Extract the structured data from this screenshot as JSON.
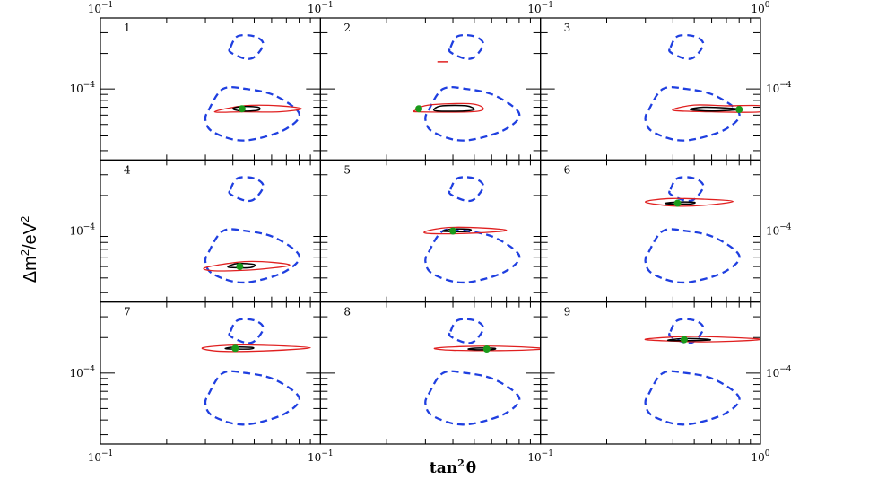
{
  "chart_data": {
    "type": "contour",
    "layout": "3x3 small multiples",
    "xlabel_base": "tan",
    "xlabel_sup": "2",
    "xlabel_end": "θ",
    "ylabel_main": "Δm",
    "ylabel_sup1": "2",
    "ylabel_mid": "/eV",
    "ylabel_sup2": "2",
    "x_scale": "log",
    "xlim": [
      0.1,
      1.0
    ],
    "y_scale": "log",
    "ylim": [
      2.5e-05,
      0.0004
    ],
    "x_tick_label_base": "10",
    "x_tick_label_left_exp": "−1",
    "x_tick_label_right_exp": "0",
    "y_tick_label_base": "10",
    "y_tick_label_exp": "−4",
    "colors": {
      "allowed_region": "#1f3fe0",
      "fit_region": "#e02020",
      "best_fit_region": "#000000",
      "best_fit_point": "#1a9a1a"
    },
    "common_contours": [
      {
        "style": "dashed",
        "color": "#1f3fe0",
        "points": [
          [
            0.31,
            6.6e-05
          ],
          [
            0.36,
            0.0001
          ],
          [
            0.46,
            0.0001
          ],
          [
            0.62,
            8.8e-05
          ],
          [
            0.8,
            6.2e-05
          ],
          [
            0.7,
            4.6e-05
          ],
          [
            0.52,
            3.8e-05
          ],
          [
            0.41,
            3.7e-05
          ],
          [
            0.32,
            4.4e-05
          ],
          [
            0.3,
            5.5e-05
          ],
          [
            0.31,
            6.6e-05
          ]
        ]
      },
      {
        "style": "dashed",
        "color": "#1f3fe0",
        "points": [
          [
            0.39,
            0.000225
          ],
          [
            0.42,
            0.00028
          ],
          [
            0.5,
            0.00028
          ],
          [
            0.55,
            0.00024
          ],
          [
            0.5,
            0.000186
          ],
          [
            0.45,
            0.000182
          ],
          [
            0.39,
            0.000205
          ],
          [
            0.39,
            0.000225
          ]
        ]
      }
    ],
    "panels": [
      {
        "label": "1",
        "best_fit": [
          0.44,
          6.8e-05
        ],
        "fit_contour": [
          [
            0.33,
            6.4e-05
          ],
          [
            0.45,
            7.2e-05
          ],
          [
            0.65,
            7.2e-05
          ],
          [
            0.82,
            6.8e-05
          ],
          [
            0.65,
            6.4e-05
          ],
          [
            0.45,
            6.4e-05
          ],
          [
            0.33,
            6.4e-05
          ]
        ],
        "best_contour": [
          [
            0.4,
            6.8e-05
          ],
          [
            0.44,
            7.1e-05
          ],
          [
            0.52,
            7e-05
          ],
          [
            0.52,
            6.6e-05
          ],
          [
            0.44,
            6.5e-05
          ],
          [
            0.4,
            6.8e-05
          ]
        ]
      },
      {
        "label": "2",
        "best_fit": [
          0.28,
          6.8e-05
        ],
        "fit_contour": [
          [
            0.27,
            6.6e-05
          ],
          [
            0.31,
            7.3e-05
          ],
          [
            0.48,
            7.5e-05
          ],
          [
            0.55,
            6.8e-05
          ],
          [
            0.48,
            6.4e-05
          ],
          [
            0.28,
            6.4e-05
          ],
          [
            0.27,
            6.6e-05
          ]
        ],
        "best_contour": [
          [
            0.33,
            6.8e-05
          ],
          [
            0.36,
            7.2e-05
          ],
          [
            0.46,
            7.2e-05
          ],
          [
            0.5,
            6.7e-05
          ],
          [
            0.45,
            6.5e-05
          ],
          [
            0.34,
            6.5e-05
          ],
          [
            0.33,
            6.8e-05
          ]
        ],
        "extra_segments": [
          [
            [
              0.34,
              0.00017
            ],
            [
              0.38,
              0.00017
            ]
          ]
        ]
      },
      {
        "label": "3",
        "best_fit": [
          0.8,
          6.7e-05
        ],
        "fit_contour": [
          [
            0.4,
            6.6e-05
          ],
          [
            0.5,
            7.3e-05
          ],
          [
            0.7,
            7.2e-05
          ],
          [
            1.0,
            7.2e-05
          ],
          [
            1.0,
            6.4e-05
          ],
          [
            0.6,
            6.4e-05
          ],
          [
            0.4,
            6.6e-05
          ]
        ],
        "best_contour": [
          [
            0.48,
            6.7e-05
          ],
          [
            0.55,
            7e-05
          ],
          [
            0.7,
            6.9e-05
          ],
          [
            0.8,
            6.7e-05
          ],
          [
            0.6,
            6.5e-05
          ],
          [
            0.48,
            6.7e-05
          ]
        ]
      },
      {
        "label": "4",
        "best_fit": [
          0.43,
          5e-05
        ],
        "fit_contour": [
          [
            0.3,
            4.9e-05
          ],
          [
            0.45,
            5.5e-05
          ],
          [
            0.62,
            5.4e-05
          ],
          [
            0.72,
            5.1e-05
          ],
          [
            0.5,
            4.7e-05
          ],
          [
            0.33,
            4.6e-05
          ],
          [
            0.3,
            4.9e-05
          ]
        ],
        "best_contour": [
          [
            0.38,
            5e-05
          ],
          [
            0.42,
            5.3e-05
          ],
          [
            0.5,
            5.2e-05
          ],
          [
            0.48,
            4.9e-05
          ],
          [
            0.4,
            4.9e-05
          ],
          [
            0.38,
            5e-05
          ]
        ]
      },
      {
        "label": "5",
        "best_fit": [
          0.4,
          0.0001
        ],
        "fit_contour": [
          [
            0.3,
            9.9e-05
          ],
          [
            0.38,
            0.000107
          ],
          [
            0.55,
            0.000106
          ],
          [
            0.7,
            0.000101
          ],
          [
            0.5,
            9.6e-05
          ],
          [
            0.32,
            9.5e-05
          ],
          [
            0.3,
            9.9e-05
          ]
        ],
        "best_contour": [
          [
            0.36,
            0.0001
          ],
          [
            0.4,
            0.000104
          ],
          [
            0.48,
            0.000103
          ],
          [
            0.46,
            9.9e-05
          ],
          [
            0.38,
            9.9e-05
          ],
          [
            0.36,
            0.0001
          ]
        ]
      },
      {
        "label": "6",
        "best_fit": [
          0.42,
          0.000172
        ],
        "fit_contour": [
          [
            0.3,
            0.000176
          ],
          [
            0.38,
            0.000188
          ],
          [
            0.55,
            0.000186
          ],
          [
            0.75,
            0.000178
          ],
          [
            0.55,
            0.000165
          ],
          [
            0.4,
            0.000163
          ],
          [
            0.3,
            0.000176
          ]
        ],
        "best_contour": [
          [
            0.37,
            0.000172
          ],
          [
            0.42,
            0.000176
          ],
          [
            0.5,
            0.000175
          ],
          [
            0.48,
            0.00017
          ],
          [
            0.39,
            0.00017
          ],
          [
            0.37,
            0.000172
          ]
        ]
      },
      {
        "label": "7",
        "best_fit": [
          0.41,
          0.000162
        ],
        "fit_contour": [
          [
            0.29,
            0.000163
          ],
          [
            0.38,
            0.000172
          ],
          [
            0.55,
            0.000172
          ],
          [
            0.9,
            0.000164
          ],
          [
            0.55,
            0.000154
          ],
          [
            0.35,
            0.000153
          ],
          [
            0.29,
            0.000163
          ]
        ],
        "best_contour": [
          [
            0.37,
            0.000162
          ],
          [
            0.41,
            0.000166
          ],
          [
            0.49,
            0.000165
          ],
          [
            0.48,
            0.00016
          ],
          [
            0.39,
            0.00016
          ],
          [
            0.37,
            0.000162
          ]
        ]
      },
      {
        "label": "8",
        "best_fit": [
          0.57,
          0.00016
        ],
        "fit_contour": [
          [
            0.33,
            0.000162
          ],
          [
            0.45,
            0.000168
          ],
          [
            0.65,
            0.000169
          ],
          [
            1.0,
            0.000163
          ],
          [
            1.0,
            0.000159
          ],
          [
            0.65,
            0.000155
          ],
          [
            0.4,
            0.000156
          ],
          [
            0.33,
            0.000162
          ]
        ],
        "best_contour": [
          [
            0.47,
            0.00016
          ],
          [
            0.53,
            0.000163
          ],
          [
            0.62,
            0.000162
          ],
          [
            0.6,
            0.000158
          ],
          [
            0.5,
            0.000158
          ],
          [
            0.47,
            0.00016
          ]
        ]
      },
      {
        "label": "9",
        "best_fit": [
          0.45,
          0.000192
        ],
        "fit_contour": [
          [
            0.3,
            0.000192
          ],
          [
            0.4,
            0.000202
          ],
          [
            0.55,
            0.000204
          ],
          [
            1.0,
            0.000194
          ],
          [
            0.75,
            0.000186
          ],
          [
            0.5,
            0.000184
          ],
          [
            0.3,
            0.000192
          ]
        ],
        "best_contour": [
          [
            0.38,
            0.00019
          ],
          [
            0.45,
            0.000196
          ],
          [
            0.56,
            0.000194
          ],
          [
            0.58,
            0.00019
          ],
          [
            0.42,
            0.000188
          ],
          [
            0.38,
            0.00019
          ]
        ]
      }
    ]
  }
}
